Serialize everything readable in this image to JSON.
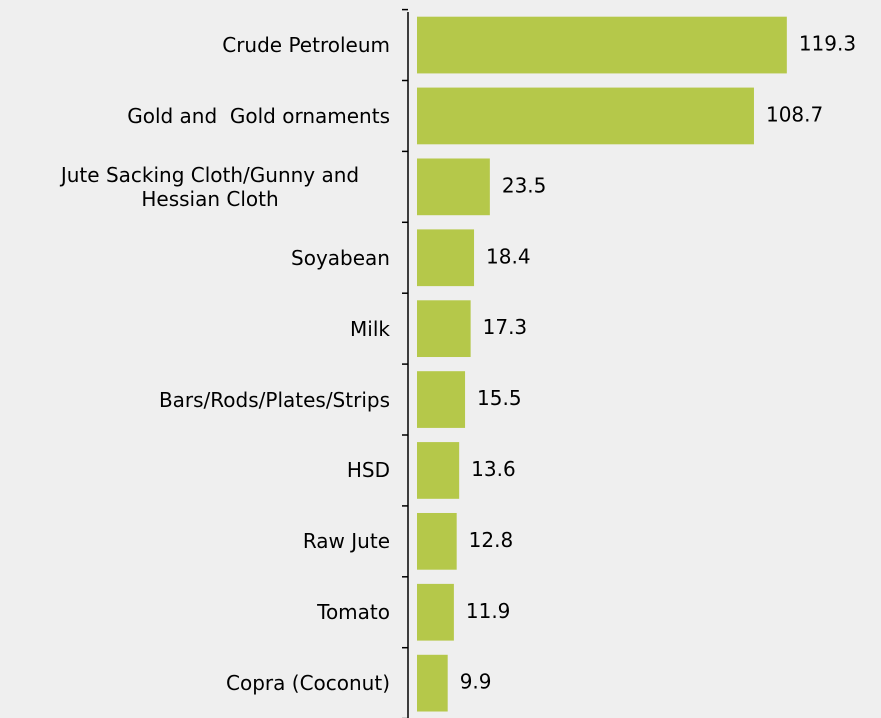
{
  "chart_data": {
    "type": "bar",
    "orientation": "horizontal",
    "categories": [
      "Crude Petroleum",
      "Gold and  Gold ornaments",
      "Jute Sacking Cloth/Gunny and Hessian Cloth",
      "Soyabean",
      "Milk",
      "Bars/Rods/Plates/Strips",
      "HSD",
      "Raw Jute",
      "Tomato",
      "Copra (Coconut)"
    ],
    "values": [
      119.3,
      108.7,
      23.5,
      18.4,
      17.3,
      15.5,
      13.6,
      12.8,
      11.9,
      9.9
    ],
    "color": "#b5c84a"
  }
}
